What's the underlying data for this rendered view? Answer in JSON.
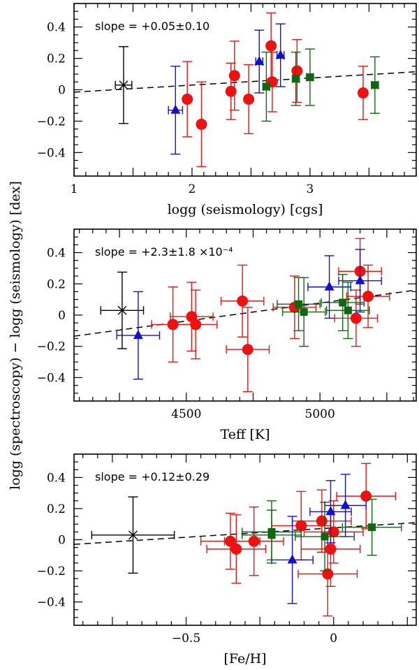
{
  "colors": {
    "giants_red": "#ee1111",
    "blue": "#1111cc",
    "green": "#116611",
    "typical_error": "#000000",
    "fit_line": "#000000"
  },
  "shared_ylabel": "logg (spectroscopy) − logg (seismology) [dex]",
  "chart_data": [
    {
      "type": "scatter",
      "xlabel": "logg (seismology) [cgs]",
      "ylabel": "",
      "xlim": [
        1.0,
        3.9
      ],
      "ylim": [
        -0.55,
        0.55
      ],
      "xticks": [
        1,
        2,
        3
      ],
      "xtick_labels": [
        "1",
        "2",
        "3"
      ],
      "yticks": [
        -0.4,
        -0.2,
        0,
        0.2,
        0.4
      ],
      "ytick_labels": [
        "−0.4",
        "−0.2",
        "0",
        "0.2",
        "0.4"
      ],
      "annotation": "slope  =  +0.05±0.10",
      "fit_line": {
        "x": [
          1.0,
          3.9
        ],
        "y": [
          -0.015,
          0.115
        ]
      },
      "typical_error": {
        "x": 1.42,
        "y": 0.03,
        "xerr": 0.07,
        "yerr": 0.245
      },
      "series": [
        {
          "marker": "circle",
          "color": "#ee1111",
          "points": [
            {
              "x": 1.96,
              "y": -0.06,
              "xerr": 0.03,
              "yerr": 0.24
            },
            {
              "x": 2.08,
              "y": -0.22,
              "xerr": 0.03,
              "yerr": 0.27
            },
            {
              "x": 2.33,
              "y": -0.01,
              "xerr": 0.03,
              "yerr": 0.18
            },
            {
              "x": 2.36,
              "y": 0.09,
              "xerr": 0.03,
              "yerr": 0.22
            },
            {
              "x": 2.48,
              "y": -0.06,
              "xerr": 0.03,
              "yerr": 0.22
            },
            {
              "x": 2.67,
              "y": 0.28,
              "xerr": 0.03,
              "yerr": 0.21
            },
            {
              "x": 2.68,
              "y": 0.05,
              "xerr": 0.03,
              "yerr": 0.19
            },
            {
              "x": 2.89,
              "y": 0.12,
              "xerr": 0.03,
              "yerr": 0.2
            },
            {
              "x": 3.45,
              "y": -0.02,
              "xerr": 0.03,
              "yerr": 0.17
            }
          ]
        },
        {
          "marker": "triangle",
          "color": "#1111cc",
          "points": [
            {
              "x": 1.86,
              "y": -0.13,
              "xerr": 0.06,
              "yerr": 0.28
            },
            {
              "x": 2.57,
              "y": 0.18,
              "xerr": 0.03,
              "yerr": 0.2
            },
            {
              "x": 2.75,
              "y": 0.22,
              "xerr": 0.03,
              "yerr": 0.2
            }
          ]
        },
        {
          "marker": "square",
          "color": "#116611",
          "points": [
            {
              "x": 2.63,
              "y": 0.02,
              "xerr": 0.03,
              "yerr": 0.22
            },
            {
              "x": 2.88,
              "y": 0.07,
              "xerr": 0.03,
              "yerr": 0.17
            },
            {
              "x": 3.0,
              "y": 0.08,
              "xerr": 0.03,
              "yerr": 0.18
            },
            {
              "x": 3.55,
              "y": 0.03,
              "xerr": 0.03,
              "yerr": 0.18
            }
          ]
        }
      ]
    },
    {
      "type": "scatter",
      "xlabel": "Teff [K]",
      "ylabel": "",
      "xlim": [
        4080,
        5360
      ],
      "ylim": [
        -0.55,
        0.55
      ],
      "xticks": [
        4500,
        5000
      ],
      "xtick_labels": [
        "4500",
        "5000"
      ],
      "yticks": [
        -0.4,
        -0.2,
        0,
        0.2,
        0.4
      ],
      "ytick_labels": [
        "−0.4",
        "−0.2",
        "0",
        "0.2",
        "0.4"
      ],
      "annotation": "slope  =  +2.3±1.8  ×10⁻⁴",
      "fit_line": {
        "x": [
          4080,
          5360
        ],
        "y": [
          -0.135,
          0.16
        ]
      },
      "typical_error": {
        "x": 4260,
        "y": 0.03,
        "xerr": 80,
        "yerr": 0.245
      },
      "series": [
        {
          "marker": "circle",
          "color": "#ee1111",
          "points": [
            {
              "x": 4450,
              "y": -0.06,
              "xerr": 80,
              "yerr": 0.24
            },
            {
              "x": 4520,
              "y": -0.01,
              "xerr": 80,
              "yerr": 0.22
            },
            {
              "x": 4535,
              "y": -0.06,
              "xerr": 80,
              "yerr": 0.22
            },
            {
              "x": 4710,
              "y": 0.09,
              "xerr": 80,
              "yerr": 0.23
            },
            {
              "x": 4730,
              "y": -0.22,
              "xerr": 80,
              "yerr": 0.27
            },
            {
              "x": 4905,
              "y": 0.05,
              "xerr": 80,
              "yerr": 0.2
            },
            {
              "x": 5135,
              "y": -0.02,
              "xerr": 80,
              "yerr": 0.18
            },
            {
              "x": 5150,
              "y": 0.28,
              "xerr": 80,
              "yerr": 0.21
            },
            {
              "x": 5180,
              "y": 0.12,
              "xerr": 80,
              "yerr": 0.2
            }
          ]
        },
        {
          "marker": "triangle",
          "color": "#1111cc",
          "points": [
            {
              "x": 4320,
              "y": -0.13,
              "xerr": 80,
              "yerr": 0.28
            },
            {
              "x": 5035,
              "y": 0.18,
              "xerr": 80,
              "yerr": 0.2
            },
            {
              "x": 5150,
              "y": 0.22,
              "xerr": 80,
              "yerr": 0.2
            }
          ]
        },
        {
          "marker": "square",
          "color": "#116611",
          "points": [
            {
              "x": 4920,
              "y": 0.07,
              "xerr": 80,
              "yerr": 0.17
            },
            {
              "x": 4940,
              "y": 0.02,
              "xerr": 80,
              "yerr": 0.22
            },
            {
              "x": 5085,
              "y": 0.08,
              "xerr": 80,
              "yerr": 0.18
            },
            {
              "x": 5105,
              "y": 0.03,
              "xerr": 80,
              "yerr": 0.18
            }
          ]
        }
      ]
    },
    {
      "type": "scatter",
      "xlabel": "[Fe/H]",
      "ylabel": "",
      "xlim": [
        -0.88,
        0.28
      ],
      "ylim": [
        -0.55,
        0.55
      ],
      "xticks": [
        -0.5,
        0
      ],
      "xtick_labels": [
        "−0.5",
        "0"
      ],
      "yticks": [
        -0.4,
        -0.2,
        0,
        0.2,
        0.4
      ],
      "ytick_labels": [
        "−0.4",
        "−0.2",
        "0",
        "0.2",
        "0.4"
      ],
      "annotation": "slope  =  +0.12±0.29",
      "fit_line": {
        "x": [
          -0.88,
          0.28
        ],
        "y": [
          -0.03,
          0.11
        ]
      },
      "typical_error": {
        "x": -0.68,
        "y": 0.03,
        "xerr": 0.14,
        "yerr": 0.245
      },
      "series": [
        {
          "marker": "circle",
          "color": "#ee1111",
          "points": [
            {
              "x": -0.35,
              "y": -0.01,
              "xerr": 0.1,
              "yerr": 0.18
            },
            {
              "x": -0.33,
              "y": -0.06,
              "xerr": 0.1,
              "yerr": 0.22
            },
            {
              "x": -0.27,
              "y": -0.01,
              "xerr": 0.1,
              "yerr": 0.22
            },
            {
              "x": -0.11,
              "y": 0.09,
              "xerr": 0.1,
              "yerr": 0.22
            },
            {
              "x": -0.04,
              "y": 0.12,
              "xerr": 0.1,
              "yerr": 0.2
            },
            {
              "x": -0.02,
              "y": -0.22,
              "xerr": 0.1,
              "yerr": 0.27
            },
            {
              "x": -0.01,
              "y": -0.06,
              "xerr": 0.1,
              "yerr": 0.24
            },
            {
              "x": 0.0,
              "y": 0.05,
              "xerr": 0.1,
              "yerr": 0.2
            },
            {
              "x": 0.11,
              "y": 0.28,
              "xerr": 0.1,
              "yerr": 0.21
            }
          ]
        },
        {
          "marker": "triangle",
          "color": "#1111cc",
          "points": [
            {
              "x": -0.14,
              "y": -0.13,
              "xerr": 0.07,
              "yerr": 0.28
            },
            {
              "x": -0.01,
              "y": 0.18,
              "xerr": 0.07,
              "yerr": 0.2
            },
            {
              "x": 0.04,
              "y": 0.22,
              "xerr": 0.07,
              "yerr": 0.2
            }
          ]
        },
        {
          "marker": "square",
          "color": "#116611",
          "points": [
            {
              "x": -0.21,
              "y": 0.05,
              "xerr": 0.1,
              "yerr": 0.2
            },
            {
              "x": -0.21,
              "y": 0.03,
              "xerr": 0.1,
              "yerr": 0.16
            },
            {
              "x": -0.03,
              "y": 0.02,
              "xerr": 0.1,
              "yerr": 0.22
            },
            {
              "x": 0.13,
              "y": 0.08,
              "xerr": 0.1,
              "yerr": 0.18
            }
          ]
        }
      ]
    }
  ]
}
